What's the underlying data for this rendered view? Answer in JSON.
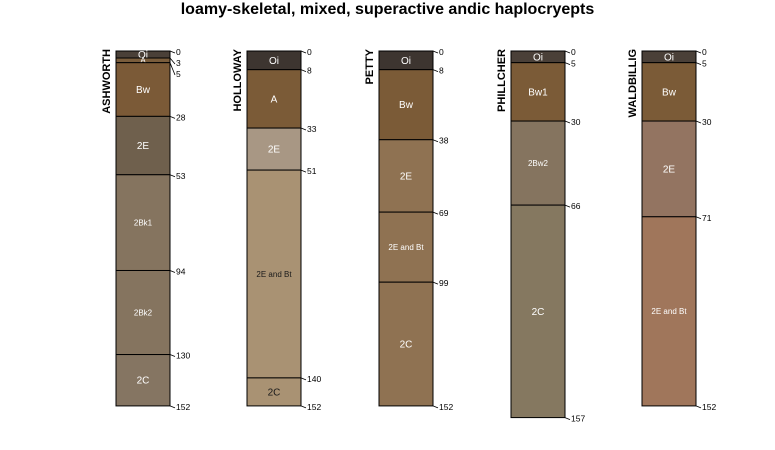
{
  "title": "loamy-skeletal, mixed, superactive andic haplocryepts",
  "profiles": [
    {
      "name": "ASHWORTH",
      "bottom_depth": 152,
      "horizons": [
        {
          "name": "Oi",
          "top": 0,
          "bottom": 3,
          "color": "#4a4038",
          "text_color": "#ffffff"
        },
        {
          "name": "A",
          "top": 3,
          "bottom": 5,
          "color": "#7a5d3c",
          "text_color": "#ffffff"
        },
        {
          "name": "Bw",
          "top": 5,
          "bottom": 28,
          "color": "#7b5a37",
          "text_color": "#ffffff"
        },
        {
          "name": "2E",
          "top": 28,
          "bottom": 53,
          "color": "#6f604d",
          "text_color": "#ffffff"
        },
        {
          "name": "2Bk1",
          "top": 53,
          "bottom": 94,
          "color": "#85745f",
          "text_color": "#ffffff"
        },
        {
          "name": "2Bk2",
          "top": 94,
          "bottom": 130,
          "color": "#85745f",
          "text_color": "#ffffff"
        },
        {
          "name": "2C",
          "top": 130,
          "bottom": 152,
          "color": "#857562",
          "text_color": "#ffffff"
        }
      ],
      "depth_labels": [
        "0",
        "3",
        "5",
        "28",
        "53",
        "94",
        "130",
        "152"
      ]
    },
    {
      "name": "HOLLOWAY",
      "bottom_depth": 152,
      "horizons": [
        {
          "name": "Oi",
          "top": 0,
          "bottom": 8,
          "color": "#3d3530",
          "text_color": "#ffffff"
        },
        {
          "name": "A",
          "top": 8,
          "bottom": 33,
          "color": "#7b5b37",
          "text_color": "#ffffff"
        },
        {
          "name": "2E",
          "top": 33,
          "bottom": 51,
          "color": "#a89784",
          "text_color": "#ffffff"
        },
        {
          "name": "2E and Bt",
          "top": 51,
          "bottom": 140,
          "color": "#a99273",
          "text_color": "#1a1a1a"
        },
        {
          "name": "2C",
          "top": 140,
          "bottom": 152,
          "color": "#a99273",
          "text_color": "#1a1a1a"
        }
      ],
      "depth_labels": [
        "0",
        "8",
        "33",
        "51",
        "140",
        "152"
      ]
    },
    {
      "name": "PETTY",
      "bottom_depth": 152,
      "horizons": [
        {
          "name": "Oi",
          "top": 0,
          "bottom": 8,
          "color": "#3d3530",
          "text_color": "#ffffff"
        },
        {
          "name": "Bw",
          "top": 8,
          "bottom": 38,
          "color": "#7b5b37",
          "text_color": "#ffffff"
        },
        {
          "name": "2E",
          "top": 38,
          "bottom": 69,
          "color": "#8f7252",
          "text_color": "#ffffff"
        },
        {
          "name": "2E and Bt",
          "top": 69,
          "bottom": 99,
          "color": "#8f7252",
          "text_color": "#ffffff"
        },
        {
          "name": "2C",
          "top": 99,
          "bottom": 152,
          "color": "#8f7252",
          "text_color": "#ffffff"
        }
      ],
      "depth_labels": [
        "0",
        "8",
        "38",
        "69",
        "99",
        "152"
      ]
    },
    {
      "name": "PHILLCHER",
      "bottom_depth": 157,
      "horizons": [
        {
          "name": "Oi",
          "top": 0,
          "bottom": 5,
          "color": "#4a4038",
          "text_color": "#ffffff"
        },
        {
          "name": "Bw1",
          "top": 5,
          "bottom": 30,
          "color": "#7b5b37",
          "text_color": "#ffffff"
        },
        {
          "name": "2Bw2",
          "top": 30,
          "bottom": 66,
          "color": "#85745f",
          "text_color": "#ffffff"
        },
        {
          "name": "2C",
          "top": 66,
          "bottom": 157,
          "color": "#857860",
          "text_color": "#ffffff"
        }
      ],
      "depth_labels": [
        "0",
        "5",
        "30",
        "66",
        "157"
      ]
    },
    {
      "name": "WALDBILLIG",
      "bottom_depth": 152,
      "horizons": [
        {
          "name": "Oi",
          "top": 0,
          "bottom": 5,
          "color": "#4a4038",
          "text_color": "#ffffff"
        },
        {
          "name": "Bw",
          "top": 5,
          "bottom": 30,
          "color": "#7b5b37",
          "text_color": "#ffffff"
        },
        {
          "name": "2E",
          "top": 30,
          "bottom": 71,
          "color": "#937461",
          "text_color": "#ffffff"
        },
        {
          "name": "2E and Bt",
          "top": 71,
          "bottom": 152,
          "color": "#a0765b",
          "text_color": "#ffffff"
        }
      ],
      "depth_labels": [
        "0",
        "5",
        "30",
        "71",
        "152"
      ]
    }
  ]
}
